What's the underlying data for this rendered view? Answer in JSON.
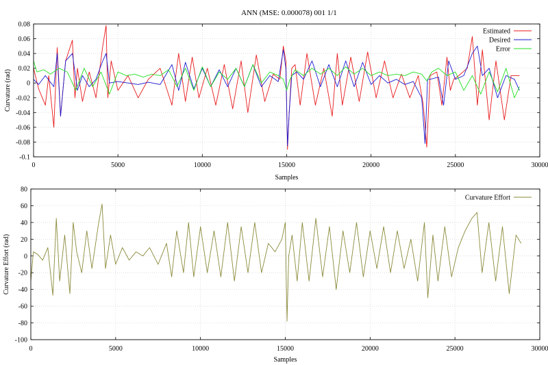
{
  "title": "ANN (MSE: 0.000078) 001 1/1",
  "colors": {
    "estimated": "#e8191a",
    "desired": "#1a1ad2",
    "error": "#22e022",
    "effort": "#8a8a3a",
    "grid": "#cfcfcf"
  },
  "chart_data": [
    {
      "type": "line",
      "title": "ANN (MSE: 0.000078) 001 1/1",
      "xlabel": "Samples",
      "ylabel": "Curvature (rad)",
      "xlim": [
        0,
        30000
      ],
      "ylim": [
        -0.1,
        0.08
      ],
      "xticks": [
        0,
        5000,
        10000,
        15000,
        20000,
        25000,
        30000
      ],
      "yticks": [
        -0.1,
        -0.08,
        -0.06,
        -0.04,
        -0.02,
        0,
        0.02,
        0.04,
        0.06,
        0.08
      ],
      "ytick_labels": [
        "-0.1",
        "-0.08",
        "-0.06",
        "-0.04",
        "-0.02",
        "0",
        "0.02",
        "0.04",
        "0.06",
        "0.08"
      ],
      "grid": true,
      "legend_position": "top-right",
      "series": [
        {
          "name": "Estimated",
          "color": "#e8191a",
          "x": [
            0,
            300,
            700,
            900,
            1200,
            1400,
            1600,
            1900,
            2300,
            2450,
            2600,
            2900,
            3300,
            3700,
            4100,
            4300,
            4400,
            4600,
            5000,
            5600,
            6200,
            6800,
            7500,
            8200,
            8600,
            9000,
            9400,
            9800,
            10300,
            10800,
            11300,
            11800,
            12300,
            12700,
            13200,
            13700,
            14200,
            14600,
            14800,
            14950,
            15050,
            15150,
            15300,
            15500,
            15800,
            16200,
            16700,
            17200,
            17700,
            18000,
            18300,
            18800,
            19300,
            19800,
            20300,
            20800,
            21300,
            21800,
            22300,
            22800,
            23100,
            23300,
            23500,
            23900,
            24200,
            24500,
            24700,
            24900,
            25200,
            25700,
            26000,
            26300,
            26600,
            27000,
            27400,
            27900,
            28300,
            28800
          ],
          "y": [
            0.02,
            -0.008,
            -0.03,
            0.01,
            -0.06,
            0.048,
            -0.045,
            0.03,
            0.058,
            -0.02,
            0.02,
            -0.025,
            0.015,
            -0.02,
            0.05,
            0.078,
            -0.02,
            0.03,
            -0.01,
            0.01,
            -0.02,
            0.005,
            0.02,
            -0.03,
            0.04,
            -0.025,
            0.035,
            -0.02,
            0.02,
            -0.03,
            0.025,
            -0.035,
            0.03,
            -0.04,
            0.038,
            -0.025,
            0.012,
            0.005,
            0.05,
            0.03,
            -0.09,
            -0.04,
            0.02,
            0.025,
            -0.03,
            0.04,
            -0.03,
            0.02,
            -0.045,
            0.04,
            -0.03,
            0.035,
            -0.025,
            0.042,
            -0.02,
            0.03,
            -0.02,
            0.012,
            -0.02,
            0.01,
            -0.03,
            -0.087,
            0.01,
            0.015,
            -0.03,
            0.035,
            -0.01,
            0.005,
            0.01,
            0.02,
            0.063,
            -0.03,
            0.045,
            -0.05,
            0.03,
            -0.05,
            0.01,
            0.01
          ]
        },
        {
          "name": "Desired",
          "color": "#1a1ad2",
          "x": [
            0,
            300,
            700,
            1200,
            1400,
            1600,
            1900,
            2300,
            2600,
            2900,
            3300,
            3700,
            4100,
            4300,
            4500,
            5000,
            5600,
            6200,
            6800,
            7500,
            8200,
            8600,
            9000,
            9500,
            10000,
            10500,
            11000,
            11500,
            12000,
            12500,
            13000,
            13500,
            14000,
            14500,
            14800,
            14950,
            15050,
            15150,
            15300,
            15600,
            16000,
            16500,
            17000,
            17500,
            18000,
            18500,
            19000,
            19500,
            20000,
            20500,
            21000,
            21500,
            22000,
            22500,
            23000,
            23200,
            23350,
            23500,
            24000,
            24300,
            24600,
            25000,
            25500,
            26000,
            26300,
            26600,
            27000,
            27500,
            28000,
            28500,
            28800
          ],
          "y": [
            0.005,
            -0.002,
            0.01,
            -0.005,
            0.04,
            -0.045,
            0.03,
            0.04,
            -0.01,
            0.01,
            -0.005,
            0.005,
            0.03,
            0.04,
            0.0,
            0.002,
            0.0,
            -0.002,
            0.001,
            -0.002,
            0.025,
            -0.01,
            0.028,
            -0.008,
            0.02,
            -0.005,
            0.018,
            -0.005,
            0.02,
            -0.005,
            0.025,
            -0.005,
            0.01,
            0.002,
            0.045,
            0.02,
            -0.085,
            -0.04,
            0.01,
            0.015,
            0.005,
            0.03,
            -0.005,
            0.025,
            -0.005,
            0.03,
            -0.005,
            0.028,
            -0.002,
            0.01,
            0.0,
            0.005,
            -0.002,
            0.002,
            -0.02,
            -0.082,
            0.005,
            0.005,
            0.008,
            -0.03,
            0.03,
            0.005,
            0.01,
            0.04,
            0.05,
            0.01,
            0.02,
            -0.02,
            0.01,
            0.005,
            -0.01
          ]
        },
        {
          "name": "Error",
          "color": "#22e022",
          "x": [
            0,
            200,
            600,
            1000,
            1500,
            2000,
            2500,
            3000,
            3500,
            4000,
            4500,
            5000,
            5500,
            6000,
            6500,
            7000,
            7500,
            8000,
            8500,
            9000,
            9500,
            10000,
            10500,
            11000,
            11500,
            12000,
            12500,
            13000,
            13500,
            14000,
            14500,
            14800,
            15000,
            15200,
            15500,
            16000,
            16500,
            17000,
            17500,
            18000,
            18500,
            19000,
            19500,
            20000,
            20500,
            21000,
            21500,
            22000,
            22500,
            23000,
            23300,
            23600,
            24000,
            24500,
            25000,
            25500,
            26000,
            26500,
            27000,
            27500,
            28000,
            28500,
            28800
          ],
          "y": [
            0.03,
            0.015,
            0.018,
            0.012,
            0.02,
            0.015,
            -0.01,
            0.02,
            -0.005,
            0.015,
            -0.015,
            0.015,
            0.01,
            0.012,
            0.008,
            0.012,
            0.01,
            0.018,
            -0.005,
            0.02,
            -0.01,
            0.022,
            -0.005,
            0.015,
            0.005,
            0.02,
            -0.005,
            0.025,
            0.0,
            0.015,
            0.01,
            0.005,
            -0.01,
            0.005,
            0.018,
            0.01,
            0.02,
            0.012,
            0.02,
            0.01,
            0.022,
            0.012,
            0.02,
            0.01,
            0.015,
            0.01,
            0.012,
            0.01,
            0.015,
            0.012,
            0.003,
            0.015,
            0.02,
            0.01,
            0.015,
            -0.01,
            0.01,
            -0.015,
            0.015,
            -0.012,
            0.02,
            -0.02,
            -0.005
          ]
        }
      ]
    },
    {
      "type": "line",
      "title": "",
      "xlabel": "Samples",
      "ylabel": "Curvature Effort (rad)",
      "xlim": [
        0,
        30000
      ],
      "ylim": [
        -100,
        80
      ],
      "xticks": [
        0,
        5000,
        10000,
        15000,
        20000,
        25000,
        30000
      ],
      "yticks": [
        -100,
        -80,
        -60,
        -40,
        -20,
        0,
        20,
        40,
        60,
        80
      ],
      "ytick_labels": [
        "-100",
        "-80",
        "-60",
        "-40",
        "-20",
        "0",
        "20",
        "40",
        "60",
        "80"
      ],
      "grid": true,
      "legend_position": "top-right",
      "series": [
        {
          "name": "Curvature Effort",
          "color": "#8a8a3a",
          "x": [
            0,
            150,
            400,
            700,
            1000,
            1300,
            1500,
            1700,
            2000,
            2300,
            2500,
            2700,
            3000,
            3300,
            3600,
            4000,
            4200,
            4400,
            4700,
            5000,
            5400,
            5800,
            6200,
            6600,
            7000,
            7500,
            8000,
            8300,
            8600,
            9000,
            9300,
            9600,
            10000,
            10400,
            10800,
            11200,
            11600,
            12000,
            12400,
            12800,
            13200,
            13600,
            14000,
            14400,
            14800,
            15000,
            15100,
            15200,
            15400,
            15700,
            16000,
            16400,
            16800,
            17200,
            17600,
            18000,
            18400,
            18800,
            19200,
            19600,
            20000,
            20400,
            20800,
            21200,
            21600,
            22000,
            22400,
            22800,
            23200,
            23400,
            23700,
            24000,
            24400,
            24800,
            25200,
            25600,
            26000,
            26300,
            26600,
            27000,
            27400,
            27800,
            28200,
            28600,
            28900
          ],
          "y": [
            -30,
            5,
            2,
            -5,
            10,
            -47,
            45,
            -30,
            25,
            -45,
            40,
            5,
            -20,
            30,
            -15,
            40,
            62,
            -15,
            25,
            -10,
            10,
            -5,
            5,
            0,
            10,
            -10,
            15,
            -25,
            30,
            -20,
            40,
            -25,
            35,
            -20,
            30,
            -25,
            40,
            -30,
            35,
            -20,
            40,
            -20,
            15,
            5,
            20,
            40,
            -78,
            0,
            25,
            -30,
            40,
            -30,
            45,
            -25,
            35,
            -40,
            30,
            -20,
            40,
            -25,
            30,
            -15,
            35,
            -20,
            30,
            -15,
            20,
            -30,
            40,
            -50,
            25,
            -30,
            35,
            -25,
            10,
            30,
            45,
            52,
            -20,
            40,
            -30,
            35,
            -45,
            25,
            15
          ]
        }
      ]
    }
  ]
}
